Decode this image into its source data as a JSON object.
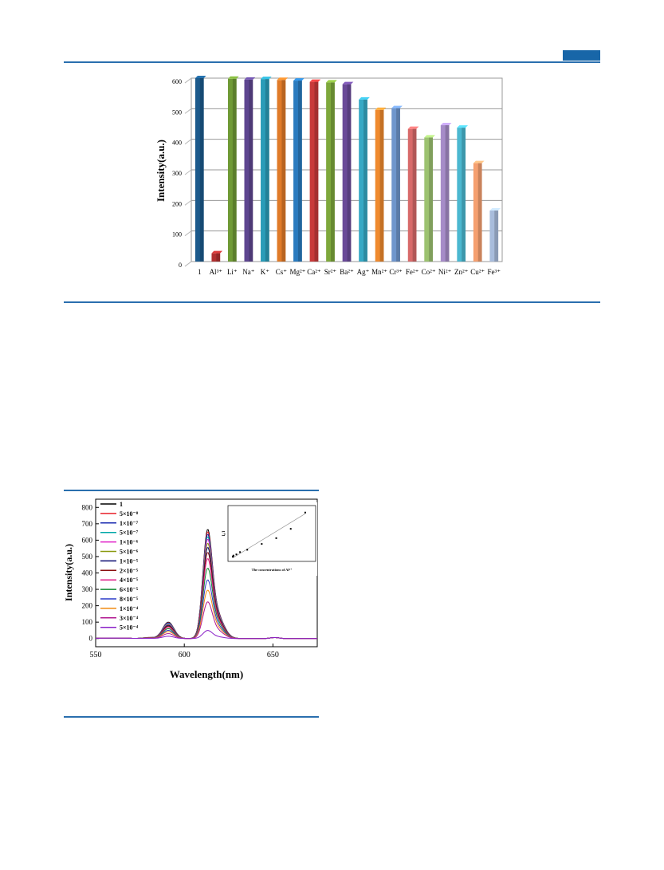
{
  "page": {
    "accent": "#2a6fae"
  },
  "chart_data": [
    {
      "type": "bar",
      "ylabel": "Intensity(a.u.)",
      "ylim": [
        0,
        600
      ],
      "yticks": [
        0,
        100,
        200,
        300,
        400,
        500,
        600
      ],
      "grid": true,
      "categories": [
        "1",
        "Al³⁺",
        "Li⁺",
        "Na⁺",
        "K⁺",
        "Cs⁺",
        "Mg²⁺",
        "Ca²⁺",
        "Sr²⁺",
        "Ba²⁺",
        "Ag⁺",
        "Mn²⁺",
        "Cr³⁺",
        "Fe²⁺",
        "Co²⁺",
        "Ni²⁺",
        "Zn²⁺",
        "Cu²⁺",
        "Fe³⁺"
      ],
      "values": [
        600,
        27,
        598,
        595,
        597,
        594,
        592,
        588,
        586,
        580,
        530,
        496,
        502,
        434,
        406,
        446,
        438,
        322,
        167
      ],
      "colors": [
        "#1c5a8c",
        "#b03030",
        "#6f9a35",
        "#5e4690",
        "#2a9cb8",
        "#e07a28",
        "#2a7bbf",
        "#c83a3a",
        "#7ea83c",
        "#6a4a98",
        "#36a8c4",
        "#ef8a2e",
        "#6f96cc",
        "#d86a6a",
        "#9cc270",
        "#a68cc8",
        "#4bb8d0",
        "#f5a070",
        "#a8bcdc"
      ]
    },
    {
      "type": "line",
      "xlabel": "Wavelength(nm)",
      "ylabel": "Intensity(a.u.)",
      "xlim": [
        550,
        675
      ],
      "ylim": [
        -50,
        850
      ],
      "xticks": [
        550,
        600,
        650
      ],
      "yticks": [
        0,
        100,
        200,
        300,
        400,
        500,
        600,
        700,
        800
      ],
      "legend_position": "top-left",
      "series": [
        {
          "name": "1",
          "color": "#000000",
          "peak": 745,
          "side": 100
        },
        {
          "name": "5×10⁻⁸",
          "color": "#e8202a",
          "peak": 728,
          "side": 97
        },
        {
          "name": "1×10⁻⁷",
          "color": "#1a2ab0",
          "peak": 712,
          "side": 95
        },
        {
          "name": "5×10⁻⁷",
          "color": "#00a8a8",
          "peak": 695,
          "side": 92
        },
        {
          "name": "1×10⁻⁶",
          "color": "#e020c8",
          "peak": 678,
          "side": 88
        },
        {
          "name": "5×10⁻⁶",
          "color": "#8a9a10",
          "peak": 650,
          "side": 84
        },
        {
          "name": "1×10⁻⁵",
          "color": "#0a0a70",
          "peak": 622,
          "side": 80
        },
        {
          "name": "2×10⁻⁵",
          "color": "#8a1010",
          "peak": 588,
          "side": 75
        },
        {
          "name": "4×10⁻⁵",
          "color": "#e0208a",
          "peak": 545,
          "side": 68
        },
        {
          "name": "6×10⁻⁵",
          "color": "#108a30",
          "peak": 480,
          "side": 60
        },
        {
          "name": "8×10⁻⁵",
          "color": "#2a3ac8",
          "peak": 400,
          "side": 50
        },
        {
          "name": "1×10⁻⁴",
          "color": "#f08a10",
          "peak": 330,
          "side": 42
        },
        {
          "name": "3×10⁻⁴",
          "color": "#b01890",
          "peak": 250,
          "side": 30
        },
        {
          "name": "5×10⁻⁴",
          "color": "#8a20c8",
          "peak": 55,
          "side": 14
        }
      ],
      "inset": {
        "type": "scatter",
        "xlabel": "The concentrations of Al³⁺",
        "ylabel": "I₀/I",
        "x": [
          0.0,
          5e-07,
          1e-06,
          5e-06,
          1e-05,
          2e-05,
          4e-05,
          6e-05,
          8e-05,
          0.0001
        ],
        "y": [
          1.0,
          1.02,
          1.05,
          1.1,
          1.2,
          1.3,
          1.55,
          1.8,
          2.2,
          2.9
        ],
        "fit_line": true
      }
    }
  ]
}
